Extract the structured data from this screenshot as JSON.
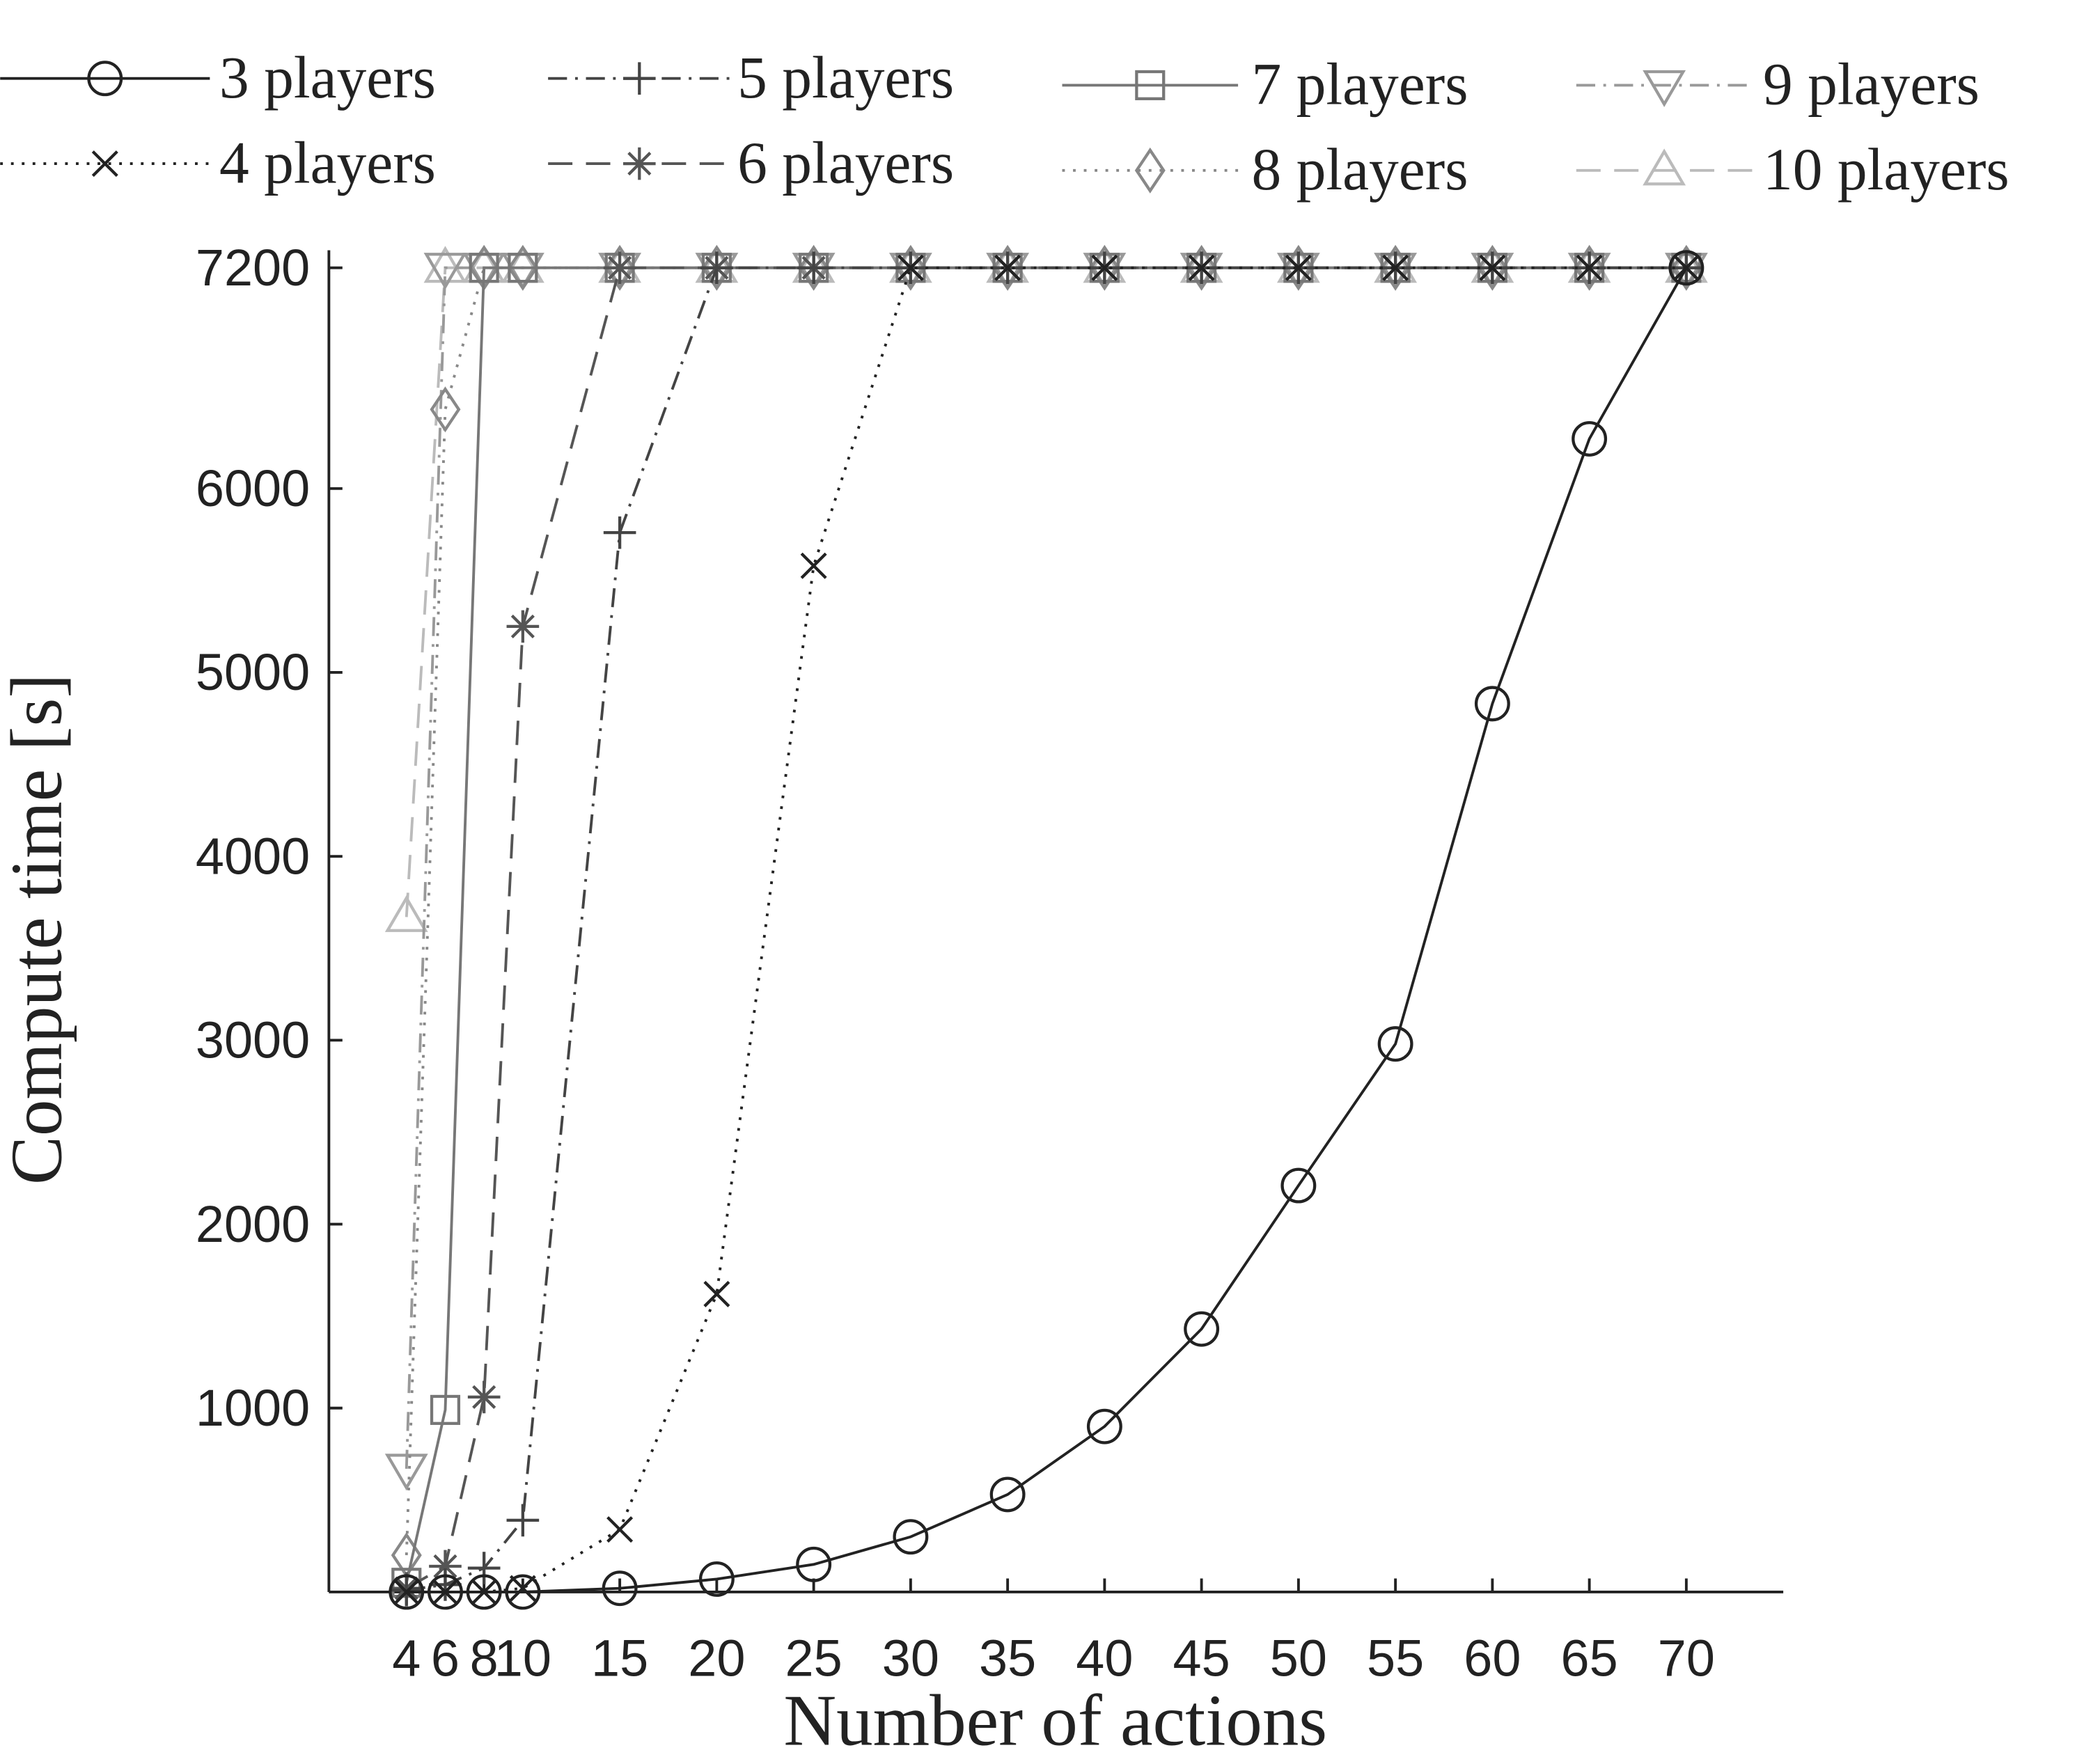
{
  "chart_data": {
    "type": "line",
    "xlabel": "Number of actions",
    "ylabel": "Compute time [s]",
    "x": [
      4,
      6,
      8,
      10,
      15,
      20,
      25,
      30,
      35,
      40,
      45,
      50,
      55,
      60,
      65,
      70
    ],
    "series": [
      {
        "name": "3 players",
        "color": "#222222",
        "dash": "solid",
        "marker": "circle",
        "values": [
          0,
          0,
          0,
          0,
          20,
          70,
          150,
          300,
          530,
          900,
          1430,
          2210,
          2980,
          4830,
          6270,
          7200
        ]
      },
      {
        "name": "4 players",
        "color": "#222222",
        "dash": "dotted",
        "marker": "x",
        "values": [
          0,
          0,
          0,
          20,
          340,
          1620,
          5580,
          7200,
          7200,
          7200,
          7200,
          7200,
          7200,
          7200,
          7200,
          7200
        ]
      },
      {
        "name": "5 players",
        "color": "#444444",
        "dash": "dashdot",
        "marker": "plus",
        "values": [
          10,
          40,
          130,
          390,
          5760,
          7200,
          7200,
          7200,
          7200,
          7200,
          7200,
          7200,
          7200,
          7200,
          7200,
          7200
        ]
      },
      {
        "name": "6 players",
        "color": "#555555",
        "dash": "dashed",
        "marker": "star",
        "values": [
          20,
          140,
          1060,
          5250,
          7200,
          7200,
          7200,
          7200,
          7200,
          7200,
          7200,
          7200,
          7200,
          7200,
          7200,
          7200
        ]
      },
      {
        "name": "7 players",
        "color": "#777777",
        "dash": "solid",
        "marker": "square",
        "values": [
          50,
          990,
          7200,
          7200,
          7200,
          7200,
          7200,
          7200,
          7200,
          7200,
          7200,
          7200,
          7200,
          7200,
          7200,
          7200
        ]
      },
      {
        "name": "8 players",
        "color": "#888888",
        "dash": "dotted",
        "marker": "diamond",
        "values": [
          200,
          6430,
          7200,
          7200,
          7200,
          7200,
          7200,
          7200,
          7200,
          7200,
          7200,
          7200,
          7200,
          7200,
          7200,
          7200
        ]
      },
      {
        "name": "9 players",
        "color": "#999999",
        "dash": "dashdot",
        "marker": "triangle-down",
        "values": [
          670,
          7200,
          7200,
          7200,
          7200,
          7200,
          7200,
          7200,
          7200,
          7200,
          7200,
          7200,
          7200,
          7200,
          7200,
          7200
        ]
      },
      {
        "name": "10 players",
        "color": "#bbbbbb",
        "dash": "dashed",
        "marker": "triangle-up",
        "values": [
          3670,
          7200,
          7200,
          7200,
          7200,
          7200,
          7200,
          7200,
          7200,
          7200,
          7200,
          7200,
          7200,
          7200,
          7200,
          7200
        ]
      }
    ],
    "xlim": [
      0,
      75
    ],
    "xticks": [
      4,
      6,
      8,
      10,
      15,
      20,
      25,
      30,
      35,
      40,
      45,
      50,
      55,
      60,
      65,
      70
    ],
    "ylim": [
      0,
      7200
    ],
    "yticks": [
      1000,
      2000,
      3000,
      4000,
      5000,
      6000,
      7200
    ],
    "grid": false,
    "legend": "top"
  }
}
